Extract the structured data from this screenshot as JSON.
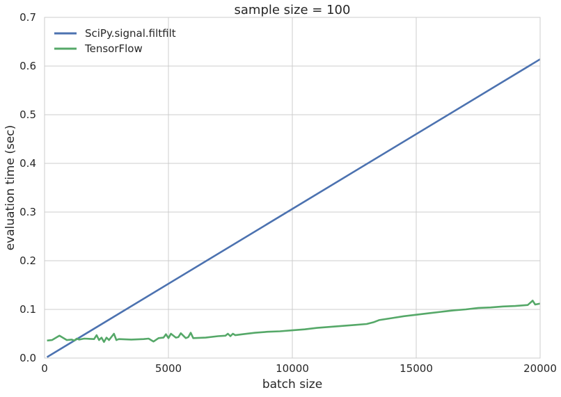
{
  "chart_data": {
    "type": "line",
    "title": "sample size = 100",
    "xlabel": "batch size",
    "ylabel": "evaluation time (sec)",
    "xlim": [
      0,
      20000
    ],
    "ylim": [
      0.0,
      0.7
    ],
    "xticks": [
      0,
      5000,
      10000,
      15000,
      20000
    ],
    "xtick_labels": [
      "0",
      "5000",
      "10000",
      "15000",
      "20000"
    ],
    "yticks": [
      0.0,
      0.1,
      0.2,
      0.3,
      0.4,
      0.5,
      0.6,
      0.7
    ],
    "ytick_labels": [
      "0.0",
      "0.1",
      "0.2",
      "0.3",
      "0.4",
      "0.5",
      "0.6",
      "0.7"
    ],
    "grid": true,
    "legend_position": "top-left",
    "series": [
      {
        "name": "SciPy.signal.filtfilt",
        "color": "#4c72b0",
        "x": [
          100,
          20000
        ],
        "y": [
          0.002,
          0.614
        ]
      },
      {
        "name": "TensorFlow",
        "color": "#55a868",
        "x": [
          100,
          300,
          600,
          900,
          1100,
          1200,
          1300,
          1400,
          1600,
          2000,
          2100,
          2200,
          2300,
          2400,
          2500,
          2600,
          2800,
          2900,
          3000,
          3500,
          4000,
          4200,
          4400,
          4600,
          4800,
          4900,
          5000,
          5100,
          5300,
          5400,
          5500,
          5700,
          5800,
          5900,
          6000,
          6500,
          7000,
          7300,
          7400,
          7500,
          7600,
          7700,
          8000,
          8500,
          9000,
          9500,
          10000,
          10500,
          11000,
          11500,
          12000,
          12500,
          13000,
          13300,
          13500,
          14000,
          14500,
          15000,
          15500,
          16000,
          16500,
          17000,
          17500,
          18000,
          18500,
          19000,
          19500,
          19700,
          19800,
          20000
        ],
        "y": [
          0.036,
          0.037,
          0.046,
          0.037,
          0.038,
          0.036,
          0.04,
          0.038,
          0.04,
          0.039,
          0.047,
          0.037,
          0.042,
          0.033,
          0.042,
          0.037,
          0.05,
          0.037,
          0.039,
          0.038,
          0.039,
          0.04,
          0.034,
          0.041,
          0.042,
          0.049,
          0.041,
          0.05,
          0.042,
          0.043,
          0.051,
          0.041,
          0.043,
          0.052,
          0.041,
          0.042,
          0.045,
          0.046,
          0.05,
          0.045,
          0.05,
          0.047,
          0.049,
          0.052,
          0.054,
          0.055,
          0.057,
          0.059,
          0.062,
          0.064,
          0.066,
          0.068,
          0.07,
          0.074,
          0.078,
          0.082,
          0.086,
          0.089,
          0.092,
          0.095,
          0.098,
          0.1,
          0.103,
          0.104,
          0.106,
          0.107,
          0.109,
          0.118,
          0.11,
          0.112
        ]
      }
    ]
  }
}
